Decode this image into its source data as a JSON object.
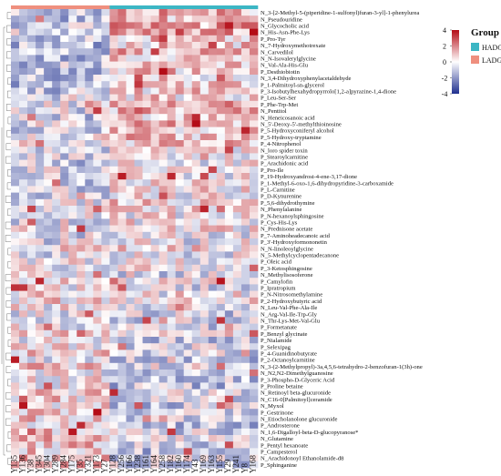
{
  "chart_data": {
    "type": "heatmap",
    "title": "",
    "xlabel": "",
    "ylabel": "",
    "columns": [
      "Y135",
      "Y136",
      "Y38",
      "Y345",
      "Y304",
      "Y289",
      "Y284",
      "Y175",
      "Y35",
      "Y321",
      "Y173",
      "Y27",
      "Y128",
      "Y256",
      "Y166",
      "Y238",
      "Y161",
      "Y164",
      "Y258",
      "Y182",
      "Y160",
      "Y174",
      "Y43",
      "Y169",
      "Y163",
      "Y155",
      "Y29",
      "Y241",
      "Y8",
      "Y168"
    ],
    "column_groups": [
      "LADG",
      "LADG",
      "LADG",
      "LADG",
      "LADG",
      "LADG",
      "LADG",
      "LADG",
      "LADG",
      "LADG",
      "LADG",
      "LADG",
      "HADG",
      "HADG",
      "HADG",
      "HADG",
      "HADG",
      "HADG",
      "HADG",
      "HADG",
      "HADG",
      "HADG",
      "HADG",
      "HADG",
      "HADG",
      "HADG",
      "HADG",
      "HADG",
      "HADG",
      "HADG"
    ],
    "rows": [
      "N_3-[2-Methyl-5-(piperidine-1-sulfonyl)furan-3-yl]-1-phenylurea",
      "N_Pseudouridine",
      "N_Glycocholic acid",
      "N_His-Asn-Phe-Lys",
      "P_Pro-Tyr",
      "N_7-Hydroxymethotrexate",
      "N_Carvedilol",
      "N_N-Isovalerylglycine",
      "N_Val-Ala-His-Glu",
      "P_Desthiobiotin",
      "N_3,4-Dihydroxyphenylacetaldehyde",
      "P_1-Palmitoyl-sn-glycerol",
      "P_3-Isobutylhexahydropyrrolo[1,2-a]pyrazine-1,4-dione",
      "P_Leu-Ser-Ser",
      "P_Phe-Trp-Met",
      "N_Pentitol",
      "N_Heneicosanoic acid",
      "N_5'-Deoxy-5'-methylthioinosine",
      "P_5-Hydroxyconiferyl alcohol",
      "P_5-Hydroxy-tryptamine",
      "P_4-Nitrophenol",
      "N_loro spider toxin",
      "P_Stearoylcarnitine",
      "P_Arachidonic acid",
      "P_Pro-Ile",
      "P_19-Hydroxyandrost-4-ene-3,17-dione",
      "P_1-Methyl-6-oxo-1,6-dihydropyridine-3-carboxamide",
      "P_L-Carnitine",
      "P_D-Kynurenine",
      "P_5,6-dihydrothymine",
      "N_Phenylalanine",
      "P_N-hexanoylsphingosine",
      "P_Cys-His-Lys",
      "N_Prednisone acetate",
      "P_7-Aminoheadecanoic acid",
      "P_3'-Hydroxyformononetin",
      "N_N-linoleoylglycine",
      "N_5-Methylcyclopentadecanone",
      "P_Oleic acid",
      "P_3-Ketosphingosine",
      "N_Methylisosoferone",
      "P_Camylofin",
      "P_Ipratropium",
      "P_N-Nitrosomethylamine",
      "P_2-Hydroxybutyric acid",
      "N_Leu-Val-Phe-Ala-Ile",
      "N_Arg-Val-Ile-Trp-Gly",
      "N_Thr-Lys-Met-Val-Glu",
      "P_Formetanate",
      "P_Benzyl glycinate",
      "P_Nialamide",
      "P_Selexipag",
      "P_4-Guanidinobutyrate",
      "P_2-Octanoylcarnitine",
      "N_3-(2-Methylpropyl)-3a,4,5,6-tetrahydro-2-benzofuran-1(3h)-one",
      "N_N2,N2-Dimethylguanosine",
      "P_3-Phospho-D-Glyceric Acid",
      "P_Proline betaine",
      "N_Retinoyl beta-glucuronide",
      "N_C16-0[Palmitoyl]ceramide",
      "N_Myxol",
      "P_Gestrinone",
      "N_Etiocholanolone glucuronide",
      "P_Androsterone",
      "N_1,6-Digalloyl-beta-D-glucopyranose*",
      "N_Glutamine",
      "P_Pentyl hexanoate",
      "P_Campesterol",
      "N_Arachidonoyl Ethanolamide-d8",
      "P_Sphinganine"
    ],
    "color_scale": {
      "min": -4,
      "max": 4,
      "low": "#1f2f8f",
      "mid": "#ffffff",
      "high": "#b40c16",
      "ticks": [
        4,
        2,
        0,
        -2,
        -4
      ]
    },
    "legend": {
      "title": "Group",
      "items": [
        {
          "name": "HADG",
          "color": "#3cb6c4"
        },
        {
          "name": "LADG",
          "color": "#ef8f7e"
        }
      ],
      "placement": "top-right"
    }
  }
}
